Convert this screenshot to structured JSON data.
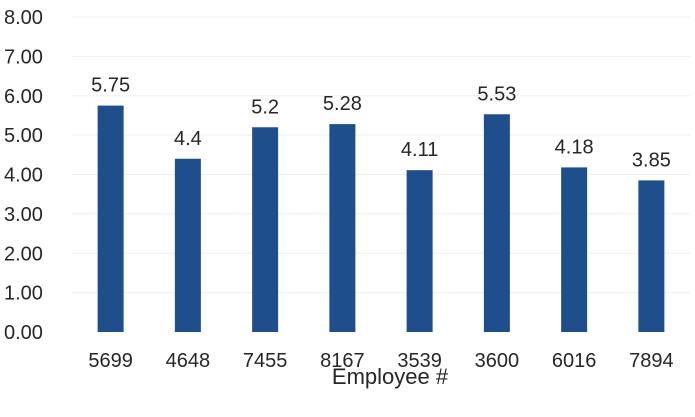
{
  "chart_data": {
    "type": "bar",
    "xlabel": "Employee #",
    "ylabel": "",
    "title": "",
    "categories": [
      "5699",
      "4648",
      "7455",
      "8167",
      "3539",
      "3600",
      "6016",
      "7894"
    ],
    "values": [
      5.75,
      4.4,
      5.2,
      5.28,
      4.11,
      5.53,
      4.18,
      3.85
    ],
    "data_labels": [
      "5.75",
      "4.4",
      "5.2",
      "5.28",
      "4.11",
      "5.53",
      "4.18",
      "3.85"
    ],
    "yticks": [
      "0.00",
      "1.00",
      "2.00",
      "3.00",
      "4.00",
      "5.00",
      "6.00",
      "7.00",
      "8.00"
    ],
    "ylim": [
      0,
      8
    ],
    "grid": true,
    "bar_color": "#1f4e8c"
  }
}
